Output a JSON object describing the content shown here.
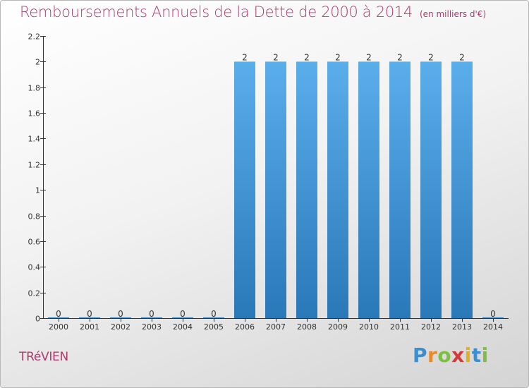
{
  "title": "Remboursements Annuels de la Dette de 2000 à 2014",
  "subtitle": "(en milliers d'€)",
  "town": "TRéVIEN",
  "logo": {
    "letters": [
      "P",
      "r",
      "o",
      "x",
      "i",
      "t",
      "i"
    ],
    "colors": [
      "#3b8fd1",
      "#e8892a",
      "#7fbf3f",
      "#d23a3a",
      "#e0b020",
      "#3b8fd1",
      "#7fbf3f"
    ]
  },
  "colors": {
    "bar_top": "#5aaeea",
    "bar_bottom": "#2a78b8",
    "title": "#b03a6e",
    "axis": "#333333"
  },
  "chart_data": {
    "type": "bar",
    "categories": [
      "2000",
      "2001",
      "2002",
      "2003",
      "2004",
      "2005",
      "2006",
      "2007",
      "2008",
      "2009",
      "2010",
      "2011",
      "2012",
      "2013",
      "2014"
    ],
    "values": [
      0,
      0,
      0,
      0,
      0,
      0,
      2,
      2,
      2,
      2,
      2,
      2,
      2,
      2,
      0
    ],
    "data_labels": [
      "0",
      "0",
      "0",
      "0",
      "0",
      "0",
      "2",
      "2",
      "2",
      "2",
      "2",
      "2",
      "2",
      "2",
      "0"
    ],
    "ylim": [
      0,
      2.2
    ],
    "yticks": [
      0,
      0.2,
      0.4,
      0.6,
      0.8,
      1,
      1.2,
      1.4,
      1.6,
      1.8,
      2,
      2.2
    ],
    "ytick_labels": [
      "0",
      "0.2",
      "0.4",
      "0.6",
      "0.8",
      "1",
      "1.2",
      "1.4",
      "1.6",
      "1.8",
      "2",
      "2.2"
    ],
    "grid": false,
    "legend": "none"
  }
}
